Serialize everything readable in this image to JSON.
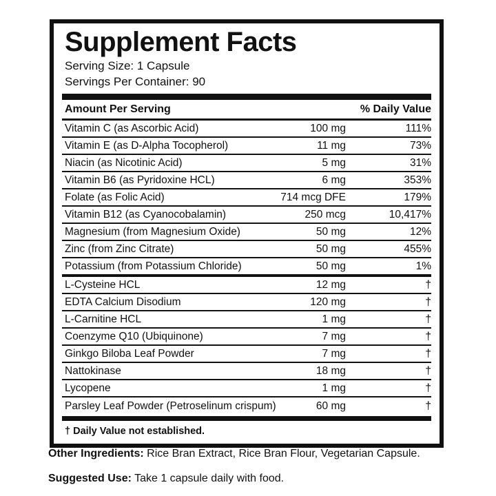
{
  "colors": {
    "ink": "#111111",
    "background": "#ffffff"
  },
  "label": {
    "title": "Supplement Facts",
    "serving_size": "Serving Size: 1 Capsule",
    "servings_per_container": "Servings Per Container: 90",
    "columns": {
      "amount_header": "Amount Per Serving",
      "daily_value_header": "% Daily Value"
    },
    "rows": [
      {
        "name": "Vitamin C (as Ascorbic Acid)",
        "amount": "100 mg",
        "dv": "111%"
      },
      {
        "name": "Vitamin E (as D-Alpha Tocopherol)",
        "amount": "11 mg",
        "dv": "73%"
      },
      {
        "name": "Niacin (as Nicotinic Acid)",
        "amount": "5 mg",
        "dv": "31%"
      },
      {
        "name": "Vitamin B6 (as Pyridoxine HCL)",
        "amount": "6 mg",
        "dv": "353%"
      },
      {
        "name": "Folate (as Folic Acid)",
        "amount": "714 mcg DFE",
        "dv": "179%"
      },
      {
        "name": "Vitamin B12 (as Cyanocobalamin)",
        "amount": "250 mcg",
        "dv": "10,417%"
      },
      {
        "name": "Magnesium (from Magnesium Oxide)",
        "amount": "50 mg",
        "dv": "12%"
      },
      {
        "name": "Zinc (from Zinc Citrate)",
        "amount": "50 mg",
        "dv": "455%"
      },
      {
        "name": "Potassium (from Potassium Chloride)",
        "amount": "50 mg",
        "dv": "1%",
        "section_end": true
      },
      {
        "name": "L-Cysteine HCL",
        "amount": "12 mg",
        "dv": "†"
      },
      {
        "name": "EDTA Calcium Disodium",
        "amount": "120 mg",
        "dv": "†"
      },
      {
        "name": "L-Carnitine HCL",
        "amount": "1 mg",
        "dv": "†"
      },
      {
        "name": "Coenzyme Q10 (Ubiquinone)",
        "amount": "7 mg",
        "dv": "†"
      },
      {
        "name": "Ginkgo Biloba Leaf Powder",
        "amount": "7 mg",
        "dv": "†"
      },
      {
        "name": "Nattokinase",
        "amount": "18 mg",
        "dv": "†"
      },
      {
        "name": "Lycopene",
        "amount": "1 mg",
        "dv": "†"
      },
      {
        "name": "Parsley Leaf Powder (Petroselinum crispum)",
        "amount": "60 mg",
        "dv": "†"
      }
    ],
    "footnote": "† Daily Value not established."
  },
  "other_ingredients": {
    "label": "Other Ingredients:",
    "text": " Rice Bran Extract, Rice Bran Flour, Vegetarian Capsule."
  },
  "suggested_use": {
    "label": "Suggested Use:",
    "text": " Take 1 capsule daily with food."
  }
}
